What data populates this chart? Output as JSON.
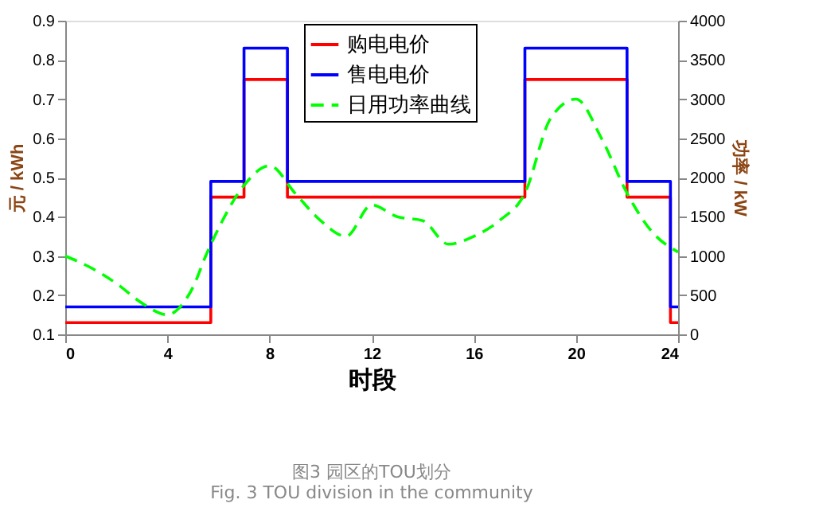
{
  "chart_data": {
    "type": "step",
    "xlabel": "时段",
    "ylabel": "元 / kWh",
    "y2label": "功率 / kW",
    "series": [
      {
        "name": "购电电价",
        "color": "#ff0000",
        "line_style": "solid",
        "x": [
          0,
          5.7,
          7,
          8.7,
          18,
          22,
          23.7,
          24
        ],
        "values": [
          0.13,
          0.45,
          0.75,
          0.45,
          0.75,
          0.45,
          0.13,
          0.13
        ]
      },
      {
        "name": "售电电价",
        "color": "#0000ff",
        "line_style": "solid",
        "x": [
          0,
          5.7,
          7,
          8.7,
          18,
          22,
          23.7,
          24
        ],
        "values": [
          0.17,
          0.49,
          0.83,
          0.49,
          0.83,
          0.49,
          0.17,
          0.17
        ]
      },
      {
        "name": "日用功率曲线",
        "color": "#00ff00",
        "type": "line",
        "line_style": "dashed",
        "axis": "y2",
        "x": [
          0,
          1,
          2,
          3,
          4,
          4.5,
          5,
          5.5,
          6,
          7,
          8,
          9,
          10,
          11,
          12,
          13,
          14,
          15,
          16,
          17,
          18,
          19,
          20,
          21,
          22,
          23,
          24
        ],
        "values": [
          1000,
          850,
          650,
          400,
          250,
          350,
          600,
          1000,
          1350,
          1900,
          2150,
          1800,
          1450,
          1250,
          1650,
          1500,
          1450,
          1150,
          1250,
          1450,
          1800,
          2750,
          3000,
          2500,
          1800,
          1300,
          1050
        ]
      }
    ],
    "xlim": [
      0,
      24
    ],
    "xticks": [
      0,
      4,
      8,
      12,
      16,
      20,
      24
    ],
    "ylim": [
      0.1,
      0.9
    ],
    "yticks": [
      0.1,
      0.2,
      0.3,
      0.4,
      0.5,
      0.6,
      0.7,
      0.8,
      0.9
    ],
    "y2lim": [
      0,
      4000
    ],
    "y2ticks": [
      0,
      500,
      1000,
      1500,
      2000,
      2500,
      3000,
      3500,
      4000
    ],
    "grid": false,
    "legend": "top",
    "marker": "none",
    "annotations": [
      "图3 园区的TOU划分",
      "Fig. 3 TOU division in the community"
    ]
  }
}
